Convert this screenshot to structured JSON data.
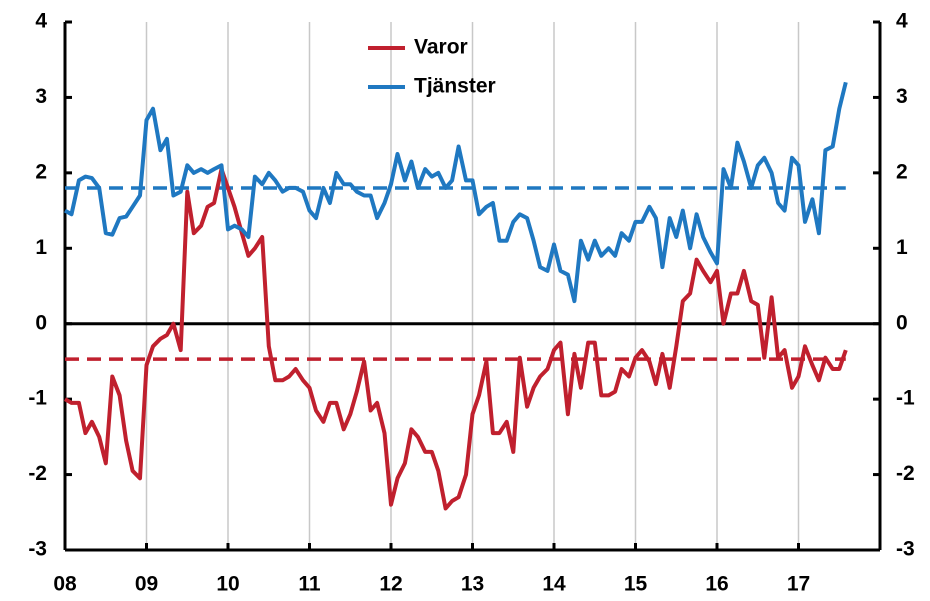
{
  "chart_data": {
    "type": "line",
    "x": [
      2008,
      2008.08,
      2008.17,
      2008.25,
      2008.33,
      2008.42,
      2008.5,
      2008.58,
      2008.67,
      2008.75,
      2008.83,
      2008.92,
      2009,
      2009.08,
      2009.17,
      2009.25,
      2009.33,
      2009.42,
      2009.5,
      2009.58,
      2009.67,
      2009.75,
      2009.83,
      2009.92,
      2010,
      2010.08,
      2010.17,
      2010.25,
      2010.33,
      2010.42,
      2010.5,
      2010.58,
      2010.67,
      2010.75,
      2010.83,
      2010.92,
      2011,
      2011.08,
      2011.17,
      2011.25,
      2011.33,
      2011.42,
      2011.5,
      2011.58,
      2011.67,
      2011.75,
      2011.83,
      2011.92,
      2012,
      2012.08,
      2012.17,
      2012.25,
      2012.33,
      2012.42,
      2012.5,
      2012.58,
      2012.67,
      2012.75,
      2012.83,
      2012.92,
      2013,
      2013.08,
      2013.17,
      2013.25,
      2013.33,
      2013.42,
      2013.5,
      2013.58,
      2013.67,
      2013.75,
      2013.83,
      2013.92,
      2014,
      2014.08,
      2014.17,
      2014.25,
      2014.33,
      2014.42,
      2014.5,
      2014.58,
      2014.67,
      2014.75,
      2014.83,
      2014.92,
      2015,
      2015.08,
      2015.17,
      2015.25,
      2015.33,
      2015.42,
      2015.5,
      2015.58,
      2015.67,
      2015.75,
      2015.83,
      2015.92,
      2016,
      2016.08,
      2016.17,
      2016.25,
      2016.33,
      2016.42,
      2016.5,
      2016.58,
      2016.67,
      2016.75,
      2016.83,
      2016.92,
      2017,
      2017.08,
      2017.17,
      2017.25,
      2017.33,
      2017.42,
      2017.5,
      2017.58
    ],
    "series": [
      {
        "name": "Varor",
        "color": "#c0202e",
        "values": [
          -1.0,
          -1.05,
          -1.05,
          -1.45,
          -1.3,
          -1.5,
          -1.85,
          -0.7,
          -0.95,
          -1.55,
          -1.95,
          -2.05,
          -0.55,
          -0.3,
          -0.2,
          -0.15,
          0.0,
          -0.35,
          1.75,
          1.2,
          1.3,
          1.55,
          1.6,
          2.05,
          1.8,
          1.55,
          1.2,
          0.9,
          1.0,
          1.15,
          -0.3,
          -0.75,
          -0.75,
          -0.7,
          -0.6,
          -0.75,
          -0.85,
          -1.15,
          -1.3,
          -1.05,
          -1.05,
          -1.4,
          -1.2,
          -0.9,
          -0.5,
          -1.15,
          -1.05,
          -1.45,
          -2.4,
          -2.05,
          -1.85,
          -1.4,
          -1.5,
          -1.7,
          -1.7,
          -1.95,
          -2.45,
          -2.35,
          -2.3,
          -2.0,
          -1.2,
          -0.95,
          -0.5,
          -1.45,
          -1.45,
          -1.3,
          -1.7,
          -0.45,
          -1.1,
          -0.85,
          -0.7,
          -0.6,
          -0.35,
          -0.25,
          -1.2,
          -0.4,
          -0.85,
          -0.25,
          -0.25,
          -0.95,
          -0.95,
          -0.9,
          -0.6,
          -0.7,
          -0.45,
          -0.35,
          -0.5,
          -0.8,
          -0.4,
          -0.85,
          -0.3,
          0.3,
          0.4,
          0.85,
          0.7,
          0.55,
          0.7,
          0.0,
          0.4,
          0.4,
          0.7,
          0.3,
          0.25,
          -0.45,
          0.35,
          -0.45,
          -0.35,
          -0.85,
          -0.7,
          -0.3,
          -0.55,
          -0.75,
          -0.45,
          -0.6,
          -0.6,
          -0.35
        ]
      },
      {
        "name": "Tjänster",
        "color": "#1f78c1",
        "values": [
          1.5,
          1.45,
          1.9,
          1.95,
          1.93,
          1.8,
          1.2,
          1.18,
          1.4,
          1.42,
          1.55,
          1.7,
          2.7,
          2.85,
          2.3,
          2.45,
          1.7,
          1.75,
          2.1,
          2.0,
          2.05,
          2.0,
          2.05,
          2.1,
          1.25,
          1.3,
          1.25,
          1.15,
          1.95,
          1.85,
          2.0,
          1.9,
          1.75,
          1.8,
          1.8,
          1.75,
          1.5,
          1.4,
          1.8,
          1.6,
          2.0,
          1.85,
          1.85,
          1.75,
          1.7,
          1.7,
          1.4,
          1.6,
          1.85,
          2.25,
          1.9,
          2.15,
          1.8,
          2.05,
          1.95,
          2.0,
          1.8,
          1.9,
          2.35,
          1.9,
          1.9,
          1.45,
          1.55,
          1.6,
          1.1,
          1.1,
          1.35,
          1.45,
          1.4,
          1.1,
          0.75,
          0.7,
          1.05,
          0.7,
          0.65,
          0.3,
          1.1,
          0.85,
          1.1,
          0.9,
          1.0,
          0.9,
          1.2,
          1.1,
          1.35,
          1.35,
          1.55,
          1.4,
          0.75,
          1.4,
          1.15,
          1.5,
          1.0,
          1.45,
          1.15,
          0.95,
          0.8,
          2.05,
          1.8,
          2.4,
          2.15,
          1.8,
          2.1,
          2.2,
          2.0,
          1.6,
          1.5,
          2.2,
          2.1,
          1.35,
          1.65,
          1.2,
          2.3,
          2.35,
          2.85,
          3.2
        ]
      }
    ],
    "reference_lines": [
      {
        "value": -0.47,
        "color": "#c0202e",
        "style": "dashed"
      },
      {
        "value": 1.8,
        "color": "#1f78c1",
        "style": "dashed"
      }
    ],
    "xlim": [
      2008,
      2018
    ],
    "xticks": [
      {
        "value": 2008,
        "label": "08"
      },
      {
        "value": 2009,
        "label": "09"
      },
      {
        "value": 2010,
        "label": "10"
      },
      {
        "value": 2011,
        "label": "11"
      },
      {
        "value": 2012,
        "label": "12"
      },
      {
        "value": 2013,
        "label": "13"
      },
      {
        "value": 2014,
        "label": "14"
      },
      {
        "value": 2015,
        "label": "15"
      },
      {
        "value": 2016,
        "label": "16"
      },
      {
        "value": 2017,
        "label": "17"
      }
    ],
    "ylim": [
      -3,
      4
    ],
    "yticks": [
      -3,
      -2,
      -1,
      0,
      1,
      2,
      3,
      4
    ],
    "y2lim": [
      -3,
      4
    ],
    "y2ticks": [
      -3,
      -2,
      -1,
      0,
      1,
      2,
      3,
      4
    ],
    "grid": true,
    "legend": "top"
  }
}
